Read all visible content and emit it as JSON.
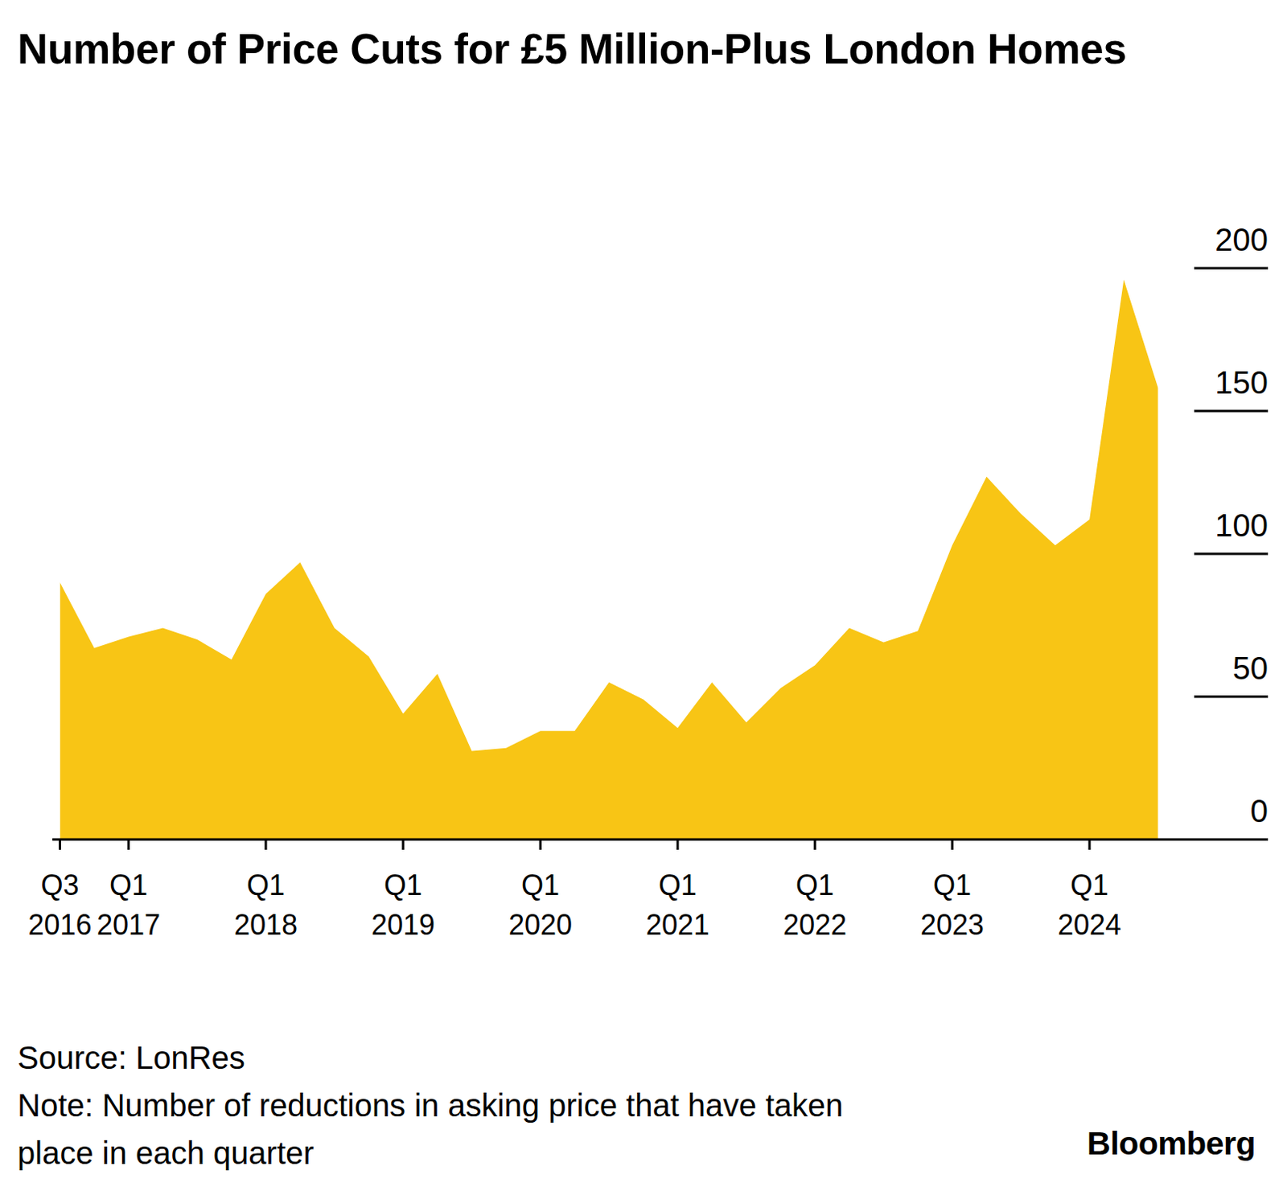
{
  "chart_data": {
    "type": "area",
    "title": "Number of Price Cuts for £5 Million-Plus London Homes",
    "source": "Source: LonRes",
    "note": "Note: Number of reductions in asking price that have taken place in each quarter",
    "brand": "Bloomberg",
    "categories": [
      "Q3 2016",
      null,
      "Q1 2017",
      null,
      null,
      null,
      "Q1 2018",
      null,
      null,
      null,
      "Q1 2019",
      null,
      null,
      null,
      "Q1 2020",
      null,
      null,
      null,
      "Q1 2021",
      null,
      null,
      null,
      "Q1 2022",
      null,
      null,
      null,
      "Q1 2023",
      null,
      null,
      null,
      "Q1 2024",
      null,
      null
    ],
    "values": [
      90,
      67,
      71,
      74,
      70,
      63,
      86,
      97,
      74,
      64,
      44,
      58,
      31,
      32,
      38,
      38,
      55,
      49,
      39,
      55,
      41,
      53,
      61,
      74,
      69,
      73,
      103,
      127,
      114,
      103,
      112,
      196,
      158
    ],
    "color": "#f8c515",
    "ylim": [
      0,
      200
    ],
    "yticks": [
      0,
      50,
      100,
      150,
      200
    ],
    "grid": true
  }
}
